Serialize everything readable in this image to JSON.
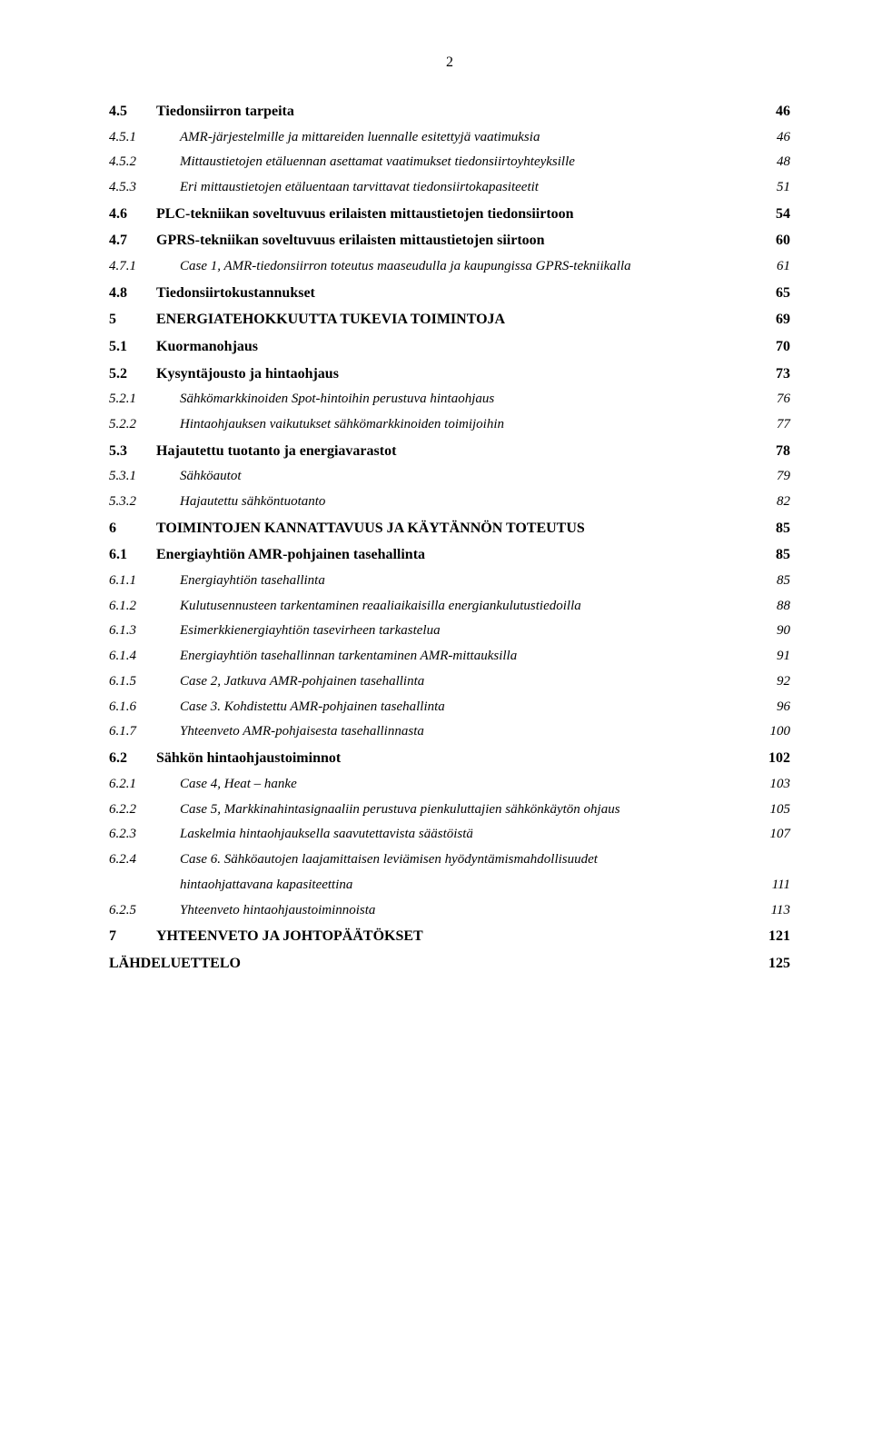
{
  "page_number": "2",
  "entries": [
    {
      "level": 2,
      "num": "4.5",
      "title": "Tiedonsiirron tarpeita",
      "page": "46"
    },
    {
      "level": 3,
      "num": "4.5.1",
      "title": "AMR-järjestelmille ja mittareiden luennalle esitettyjä vaatimuksia",
      "page": "46"
    },
    {
      "level": 3,
      "num": "4.5.2",
      "title": "Mittaustietojen etäluennan asettamat vaatimukset tiedonsiirtoyhteyksille",
      "page": "48"
    },
    {
      "level": 3,
      "num": "4.5.3",
      "title": "Eri mittaustietojen etäluentaan tarvittavat tiedonsiirtokapasiteetit",
      "page": "51"
    },
    {
      "level": 2,
      "num": "4.6",
      "title": "PLC-tekniikan soveltuvuus erilaisten mittaustietojen  tiedonsiirtoon",
      "page": "54"
    },
    {
      "level": 2,
      "num": "4.7",
      "title": "GPRS-tekniikan soveltuvuus erilaisten mittaustietojen siirtoon",
      "page": "60"
    },
    {
      "level": 3,
      "num": "4.7.1",
      "title": "Case 1, AMR-tiedonsiirron toteutus maaseudulla ja kaupungissa GPRS-tekniikalla",
      "page": "61"
    },
    {
      "level": 2,
      "num": "4.8",
      "title": "Tiedonsiirtokustannukset",
      "page": "65"
    },
    {
      "level": 1,
      "num": "5",
      "title": "ENERGIATEHOKKUUTTA TUKEVIA TOIMINTOJA",
      "page": "69"
    },
    {
      "level": 2,
      "num": "5.1",
      "title": "Kuormanohjaus",
      "page": "70"
    },
    {
      "level": 2,
      "num": "5.2",
      "title": "Kysyntäjousto ja hintaohjaus",
      "page": "73"
    },
    {
      "level": 3,
      "num": "5.2.1",
      "title": "Sähkömarkkinoiden Spot-hintoihin perustuva hintaohjaus",
      "page": "76"
    },
    {
      "level": 3,
      "num": "5.2.2",
      "title": "Hintaohjauksen vaikutukset sähkömarkkinoiden toimijoihin",
      "page": "77"
    },
    {
      "level": 2,
      "num": "5.3",
      "title": "Hajautettu tuotanto ja energiavarastot",
      "page": "78"
    },
    {
      "level": 3,
      "num": "5.3.1",
      "title": "Sähköautot",
      "page": "79"
    },
    {
      "level": 3,
      "num": "5.3.2",
      "title": "Hajautettu sähköntuotanto",
      "page": "82"
    },
    {
      "level": 1,
      "num": "6",
      "title": "TOIMINTOJEN KANNATTAVUUS JA KÄYTÄNNÖN TOTEUTUS",
      "page": "85"
    },
    {
      "level": 2,
      "num": "6.1",
      "title": "Energiayhtiön AMR-pohjainen tasehallinta",
      "page": "85"
    },
    {
      "level": 3,
      "num": "6.1.1",
      "title": "Energiayhtiön tasehallinta",
      "page": "85"
    },
    {
      "level": 3,
      "num": "6.1.2",
      "title": "Kulutusennusteen tarkentaminen reaaliaikaisilla energiankulutustiedoilla",
      "page": "88"
    },
    {
      "level": 3,
      "num": "6.1.3",
      "title": "Esimerkkienergiayhtiön tasevirheen tarkastelua",
      "page": "90"
    },
    {
      "level": 3,
      "num": "6.1.4",
      "title": "Energiayhtiön tasehallinnan tarkentaminen AMR-mittauksilla",
      "page": "91"
    },
    {
      "level": 3,
      "num": "6.1.5",
      "title": "Case 2, Jatkuva AMR-pohjainen tasehallinta",
      "page": "92"
    },
    {
      "level": 3,
      "num": "6.1.6",
      "title": "Case 3. Kohdistettu AMR-pohjainen tasehallinta",
      "page": "96"
    },
    {
      "level": 3,
      "num": "6.1.7",
      "title": "Yhteenveto AMR-pohjaisesta tasehallinnasta",
      "page": "100"
    },
    {
      "level": 2,
      "num": "6.2",
      "title": "Sähkön hintaohjaustoiminnot",
      "page": "102"
    },
    {
      "level": 3,
      "num": "6.2.1",
      "title": "Case 4, Heat – hanke",
      "page": "103"
    },
    {
      "level": 3,
      "num": "6.2.2",
      "title": "Case 5, Markkinahintasignaaliin perustuva pienkuluttajien sähkönkäytön ohjaus",
      "page": "105"
    },
    {
      "level": 3,
      "num": "6.2.3",
      "title": "Laskelmia hintaohjauksella saavutettavista säästöistä",
      "page": "107"
    },
    {
      "level": 3,
      "num": "6.2.4",
      "title_line1": "Case 6. Sähköautojen laajamittaisen leviämisen hyödyntämismahdollisuudet",
      "title_line2": "hintaohjattavana kapasiteettina",
      "page": "111",
      "wrap": true
    },
    {
      "level": 3,
      "num": "6.2.5",
      "title": "Yhteenveto hintaohjaustoiminnoista",
      "page": "113"
    },
    {
      "level": 1,
      "num": "7",
      "title": "YHTEENVETO JA JOHTOPÄÄTÖKSET",
      "page": "121"
    },
    {
      "level": 0,
      "num": "",
      "title": "LÄHDELUETTELO",
      "page": "125"
    }
  ]
}
